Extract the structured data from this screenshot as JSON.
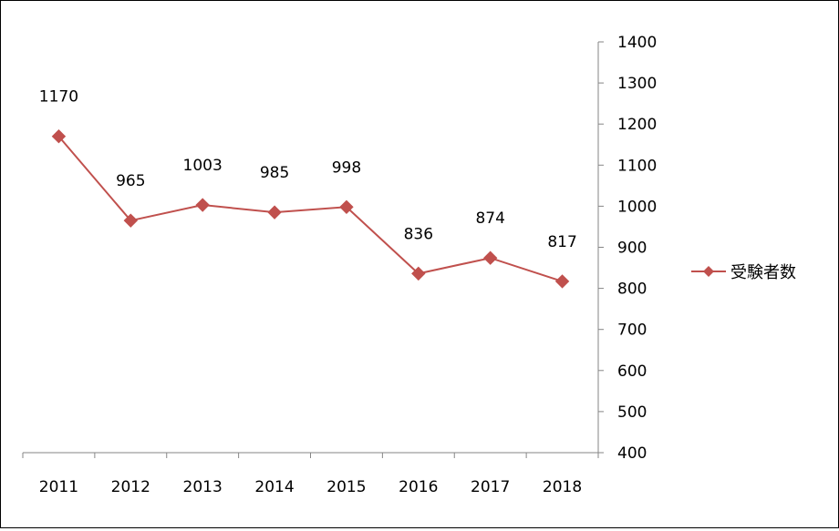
{
  "chart_data": {
    "type": "line",
    "categories": [
      "2011",
      "2012",
      "2013",
      "2014",
      "2015",
      "2016",
      "2017",
      "2018"
    ],
    "series": [
      {
        "name": "受験者数",
        "values": [
          1170,
          965,
          1003,
          985,
          998,
          836,
          874,
          817
        ],
        "color": "#C0504D",
        "marker": "diamond"
      }
    ],
    "data_labels": [
      "1170",
      "965",
      "1003",
      "985",
      "998",
      "836",
      "874",
      "817"
    ],
    "y_ticks": [
      "400",
      "500",
      "600",
      "700",
      "800",
      "900",
      "1000",
      "1100",
      "1200",
      "1300",
      "1400"
    ],
    "ylim": [
      400,
      1400
    ],
    "y_axis_position": "right",
    "grid": false,
    "legend_position": "right",
    "title": "",
    "xlabel": "",
    "ylabel": ""
  }
}
